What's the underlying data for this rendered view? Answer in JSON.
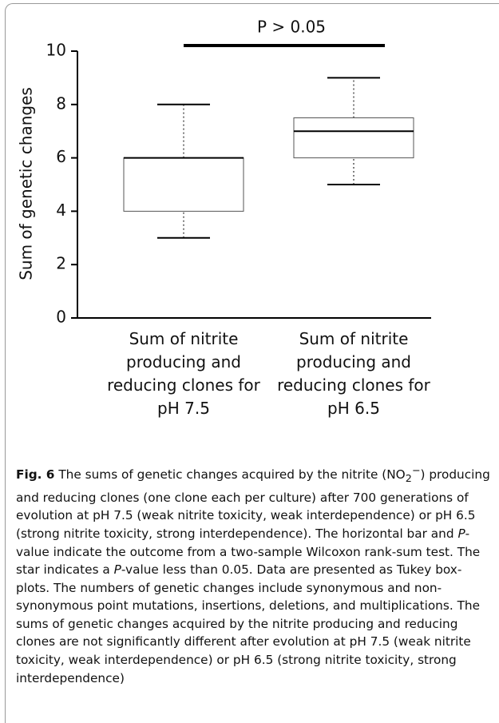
{
  "chart_data": {
    "type": "box",
    "ylabel": "Sum of genetic changes",
    "categories": [
      "Sum of nitrite producing and reducing clones for pH 7.5",
      "Sum of nitrite producing and reducing clones for pH 6.5"
    ],
    "boxes": [
      {
        "min": 3,
        "q1": 4,
        "median": 6,
        "q3": 6,
        "max": 8
      },
      {
        "min": 5,
        "q1": 6,
        "median": 7,
        "q3": 7.5,
        "max": 9
      }
    ],
    "ylim": [
      0,
      10
    ],
    "yticks": [
      0,
      2,
      4,
      6,
      8,
      10
    ],
    "annotation": "P > 0.05",
    "color": "#000000"
  },
  "caption": {
    "label": "Fig. 6",
    "parts": [
      "The sums of genetic changes acquired by the nitrite (NO",
      "2",
      "−",
      ") producing and reducing clones (one clone each per culture) after 700 generations of evolution at pH 7.5 (weak nitrite toxicity, weak interdependence) or pH 6.5 (strong nitrite toxicity, strong interdependence). The horizontal bar and ",
      "P",
      "-value indicate the outcome from a two-sample Wilcoxon rank-sum test. The star indicates a ",
      "P",
      "-value less than 0.05. Data are presented as Tukey box-plots. The numbers of genetic changes include synonymous and non-synonymous point mutations, insertions, deletions, and multiplications. The sums of genetic changes acquired by the nitrite producing and reducing clones are not significantly different after evolution at pH 7.5 (weak nitrite toxicity, weak interdependence) or pH 6.5 (strong nitrite toxicity, strong interdependence)"
    ]
  }
}
